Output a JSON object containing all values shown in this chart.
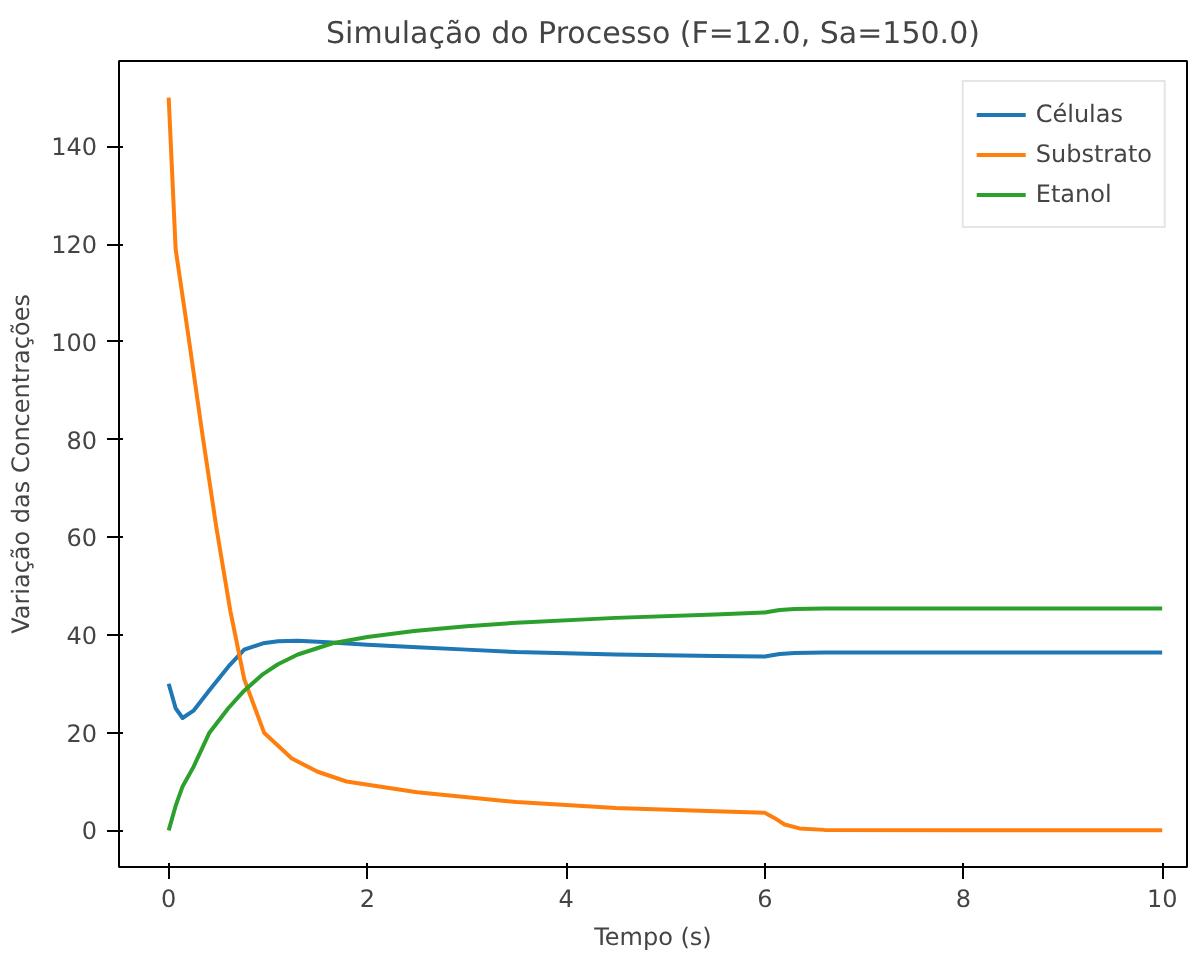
{
  "chart_data": {
    "type": "line",
    "title": "Simulação do Processo (F=12.0, Sa=150.0)",
    "xlabel": "Tempo (s)",
    "ylabel": "Variação das Concentrações",
    "xlim": [
      -0.5,
      10.25
    ],
    "ylim": [
      -7.5,
      157.5
    ],
    "xticks": [
      0,
      2,
      4,
      6,
      8,
      10
    ],
    "yticks": [
      0,
      20,
      40,
      60,
      80,
      100,
      120,
      140
    ],
    "grid": false,
    "legend": "top right",
    "series": [
      {
        "name": "Células",
        "color": "#1f77b4",
        "x": [
          0,
          0.07,
          0.14,
          0.25,
          0.41,
          0.6,
          0.76,
          0.95,
          1.1,
          1.3,
          1.6,
          2.0,
          2.5,
          3.0,
          3.5,
          4.5,
          5.5,
          6.0,
          6.15,
          6.3,
          6.6,
          8,
          10
        ],
        "values": [
          30,
          25,
          23,
          24.5,
          28.7,
          33.5,
          37,
          38.3,
          38.7,
          38.8,
          38.5,
          38,
          37.5,
          37,
          36.5,
          36,
          35.7,
          35.6,
          36.1,
          36.3,
          36.4,
          36.4,
          36.4
        ]
      },
      {
        "name": "Substrato",
        "color": "#ff7f0e",
        "x": [
          0,
          0.07,
          0.2,
          0.34,
          0.48,
          0.62,
          0.76,
          0.96,
          1.24,
          1.5,
          1.79,
          2.5,
          3.5,
          4.5,
          5.5,
          6.0,
          6.1,
          6.2,
          6.35,
          6.6,
          8,
          10
        ],
        "values": [
          150,
          119,
          101,
          81,
          62,
          45,
          31,
          20,
          14.7,
          12,
          10,
          7.8,
          5.8,
          4.6,
          3.9,
          3.6,
          2.5,
          1.2,
          0.4,
          0.1,
          0,
          0
        ]
      },
      {
        "name": "Etanol",
        "color": "#2ca02c",
        "x": [
          0,
          0.07,
          0.14,
          0.25,
          0.41,
          0.6,
          0.76,
          0.95,
          1.1,
          1.3,
          1.65,
          2.0,
          2.47,
          3.0,
          3.5,
          4.5,
          5.5,
          6.0,
          6.15,
          6.3,
          6.6,
          8,
          10
        ],
        "values": [
          0,
          5,
          9,
          13,
          20,
          25,
          28.6,
          32,
          34,
          36,
          38.3,
          39.6,
          40.8,
          41.8,
          42.5,
          43.5,
          44.2,
          44.6,
          45.1,
          45.3,
          45.4,
          45.4,
          45.4
        ]
      }
    ]
  }
}
